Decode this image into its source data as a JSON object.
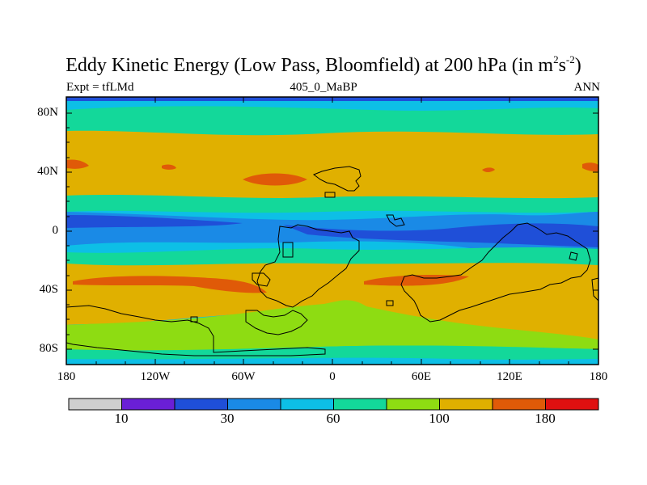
{
  "title": {
    "text": "Eddy Kinetic Energy (Low Pass, Bloomfield) at 200 hPa (in m",
    "sup1": "2",
    "mid": "s",
    "sup2": "-2",
    "close": ")"
  },
  "subtitle": {
    "left": "Expt = tfLMd",
    "center": "405_0_MaBP",
    "right": "ANN"
  },
  "map": {
    "y_tick_labels": [
      "80N",
      "40N",
      "0",
      "40S",
      "80S"
    ],
    "x_tick_labels": [
      "180",
      "120W",
      "60W",
      "0",
      "60E",
      "120E",
      "180"
    ],
    "colorbar": {
      "colors": [
        "#cfcfcf",
        "#6a1fd6",
        "#1f4fd8",
        "#1a8ae6",
        "#0dbfe6",
        "#13d89a",
        "#8edc12",
        "#e0b000",
        "#e05a08",
        "#e01010"
      ],
      "tick_labels": [
        "10",
        "30",
        "60",
        "100",
        "180"
      ]
    }
  },
  "colors": {
    "band_north_pole": "#0dbfe6",
    "band_mid_north": "#13d89a",
    "band_jet_north": "#e0b000",
    "band_core_north": "#e05a08",
    "band_tropics": "#1f4fd8",
    "band_south_jet": "#e0b000",
    "band_south_green": "#8edc12",
    "coastline": "#000000",
    "frame": "#000000"
  }
}
